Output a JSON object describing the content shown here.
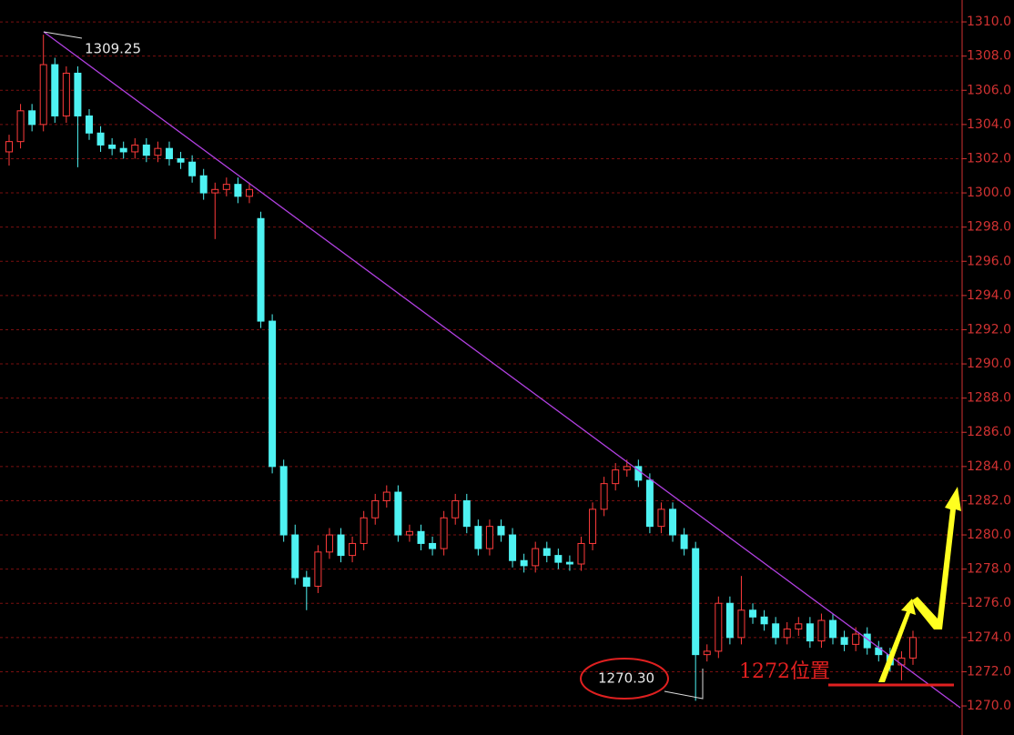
{
  "chart_data": {
    "type": "candlestick",
    "annotations": [
      "1309.25",
      "1270.30",
      "1272位置"
    ],
    "up_color": "#ff3b3b",
    "down_color": "#4ef2f2",
    "grid": true,
    "ylim": [
      1268.3,
      1311.28
    ],
    "yticks": [
      {
        "value": 1270,
        "label": "1270.0"
      },
      {
        "value": 1272,
        "label": "1272.0"
      },
      {
        "value": 1274,
        "label": "1274.0"
      },
      {
        "value": 1276,
        "label": "1276.0"
      },
      {
        "value": 1278,
        "label": "1278.0"
      },
      {
        "value": 1280,
        "label": "1280.0"
      },
      {
        "value": 1282,
        "label": "1282.0"
      },
      {
        "value": 1284,
        "label": "1284.0"
      },
      {
        "value": 1286,
        "label": "1286.0"
      },
      {
        "value": 1288,
        "label": "1288.0"
      },
      {
        "value": 1290,
        "label": "1290.0"
      },
      {
        "value": 1292,
        "label": "1292.0"
      },
      {
        "value": 1294,
        "label": "1294.0"
      },
      {
        "value": 1296,
        "label": "1296.0"
      },
      {
        "value": 1298,
        "label": "1298.0"
      },
      {
        "value": 1300,
        "label": "1300.0"
      },
      {
        "value": 1302,
        "label": "1302.0"
      },
      {
        "value": 1304,
        "label": "1304.0"
      },
      {
        "value": 1306,
        "label": "1306.0"
      },
      {
        "value": 1308,
        "label": "1308.0"
      },
      {
        "value": 1310,
        "label": "1310.0"
      }
    ],
    "open": [
      1302.4,
      1303.0,
      1304.8,
      1304.0,
      1307.5,
      1304.5,
      1307.0,
      1304.5,
      1303.5,
      1302.8,
      1302.6,
      1302.4,
      1302.8,
      1302.2,
      1302.6,
      1302.0,
      1301.8,
      1301.0,
      1300.0,
      1300.2,
      1300.5,
      1299.8,
      1298.5,
      1292.5,
      1284.0,
      1280.0,
      1277.5,
      1277.0,
      1279.0,
      1280.0,
      1278.8,
      1279.5,
      1281.0,
      1282.0,
      1282.5,
      1280.0,
      1280.2,
      1279.5,
      1279.2,
      1281.0,
      1282.0,
      1280.5,
      1279.2,
      1280.5,
      1280.0,
      1278.5,
      1278.2,
      1279.2,
      1278.8,
      1278.4,
      1278.3,
      1279.5,
      1281.5,
      1283.0,
      1283.8,
      1284.0,
      1283.2,
      1280.5,
      1281.5,
      1280.0,
      1279.2,
      1273.0,
      1273.2,
      1276.0,
      1274.0,
      1275.6,
      1275.2,
      1274.8,
      1274.0,
      1274.5,
      1274.8,
      1273.8,
      1275.0,
      1274.0,
      1273.6,
      1274.2,
      1273.4,
      1273.0,
      1272.4,
      1272.8
    ],
    "high": [
      1303.4,
      1305.2,
      1305.2,
      1309.25,
      1307.9,
      1307.4,
      1307.4,
      1304.9,
      1303.9,
      1303.2,
      1303.0,
      1303.2,
      1303.2,
      1303.0,
      1303.0,
      1302.4,
      1302.2,
      1301.4,
      1300.6,
      1300.9,
      1300.9,
      1300.6,
      1298.9,
      1292.9,
      1284.4,
      1280.6,
      1277.9,
      1279.4,
      1280.4,
      1280.4,
      1279.9,
      1281.4,
      1282.4,
      1282.9,
      1282.9,
      1280.6,
      1280.6,
      1279.9,
      1281.4,
      1282.4,
      1282.4,
      1280.9,
      1280.9,
      1280.9,
      1280.4,
      1278.9,
      1279.6,
      1279.6,
      1279.2,
      1278.8,
      1279.9,
      1281.9,
      1283.4,
      1284.2,
      1284.4,
      1284.4,
      1283.6,
      1281.9,
      1281.9,
      1280.4,
      1279.6,
      1273.6,
      1276.4,
      1276.4,
      1277.6,
      1276.0,
      1275.6,
      1275.2,
      1274.9,
      1275.2,
      1275.2,
      1275.4,
      1275.4,
      1274.4,
      1274.6,
      1274.6,
      1273.8,
      1273.4,
      1273.2,
      1274.4
    ],
    "low": [
      1301.6,
      1302.6,
      1303.6,
      1303.6,
      1304.1,
      1304.1,
      1301.5,
      1303.1,
      1302.4,
      1302.2,
      1302.0,
      1302.0,
      1301.8,
      1301.8,
      1301.6,
      1301.4,
      1300.6,
      1299.6,
      1297.3,
      1299.8,
      1299.4,
      1299.4,
      1292.1,
      1283.6,
      1279.6,
      1277.1,
      1275.6,
      1276.6,
      1278.6,
      1278.4,
      1278.4,
      1279.1,
      1280.6,
      1281.6,
      1279.6,
      1279.6,
      1279.1,
      1278.8,
      1278.8,
      1280.6,
      1280.1,
      1278.8,
      1278.8,
      1279.6,
      1278.1,
      1277.8,
      1277.8,
      1278.4,
      1278.0,
      1277.9,
      1277.9,
      1279.1,
      1281.1,
      1282.6,
      1283.4,
      1282.8,
      1280.1,
      1280.1,
      1279.6,
      1278.8,
      1270.3,
      1272.6,
      1272.8,
      1273.6,
      1273.6,
      1274.8,
      1274.4,
      1273.6,
      1273.6,
      1274.1,
      1273.4,
      1273.4,
      1273.6,
      1273.2,
      1273.2,
      1273.0,
      1272.6,
      1272.0,
      1271.5,
      1272.4
    ],
    "close": [
      1303.0,
      1304.8,
      1304.0,
      1307.5,
      1304.5,
      1307.0,
      1304.5,
      1303.5,
      1302.8,
      1302.6,
      1302.4,
      1302.8,
      1302.2,
      1302.6,
      1302.0,
      1301.8,
      1301.0,
      1300.0,
      1300.2,
      1300.5,
      1299.8,
      1300.2,
      1292.5,
      1284.0,
      1280.0,
      1277.5,
      1277.0,
      1279.0,
      1280.0,
      1278.8,
      1279.5,
      1281.0,
      1282.0,
      1282.5,
      1280.0,
      1280.2,
      1279.5,
      1279.2,
      1281.0,
      1282.0,
      1280.5,
      1279.2,
      1280.5,
      1280.0,
      1278.5,
      1278.2,
      1279.2,
      1278.8,
      1278.4,
      1278.3,
      1279.5,
      1281.5,
      1283.0,
      1283.8,
      1284.0,
      1283.2,
      1280.5,
      1281.5,
      1280.0,
      1279.2,
      1273.0,
      1273.2,
      1276.0,
      1274.0,
      1275.6,
      1275.2,
      1274.8,
      1274.0,
      1274.5,
      1274.8,
      1273.8,
      1275.0,
      1274.0,
      1273.6,
      1274.2,
      1273.4,
      1273.0,
      1272.4,
      1272.8,
      1274.0
    ]
  }
}
